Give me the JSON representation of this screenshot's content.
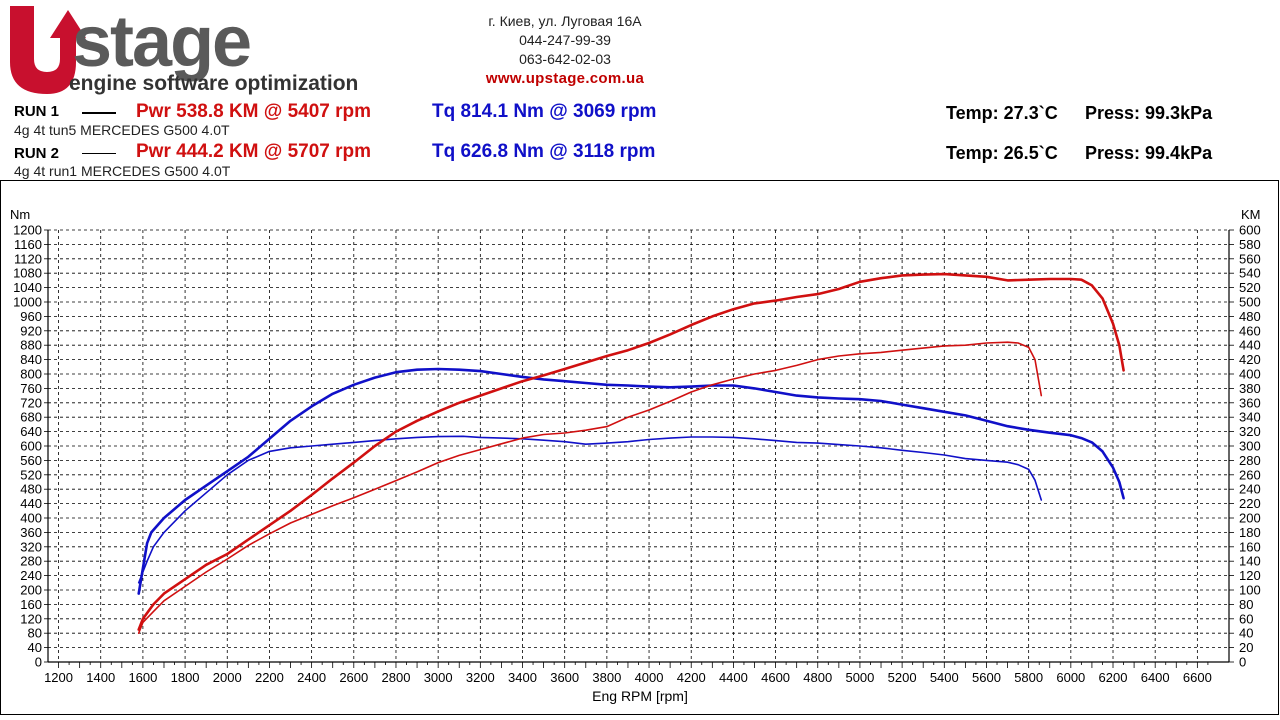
{
  "brand": {
    "logo_text": "stage",
    "logo_tagline": "engine software optimization"
  },
  "contact": {
    "address": "г. Киев, ул. Луговая 16А",
    "phone1": "044-247-99-39",
    "phone2": "063-642-02-03",
    "website": "www.upstage.com.ua"
  },
  "runs": [
    {
      "label": "RUN 1",
      "description": "4g 4t tun5 MERCEDES G500 4.0T",
      "power": "Pwr  538.8 KM @ 5407 rpm",
      "torque": "Tq 814.1 Nm @ 3069 rpm",
      "temp": "Temp: 27.3`C",
      "press": "Press: 99.3kPa"
    },
    {
      "label": "RUN 2",
      "description": "4g 4t run1 MERCEDES G500 4.0T",
      "power": "Pwr  444.2 KM @ 5707 rpm",
      "torque": "Tq 626.8 Nm @ 3118 rpm",
      "temp": "Temp: 26.5`C",
      "press": "Press: 99.4kPa"
    }
  ],
  "colors": {
    "power": "#d01010",
    "torque": "#1010c8",
    "brand_red": "#c8102e",
    "brand_grey": "#5a5a5a"
  },
  "chart_data": {
    "type": "line",
    "xlabel": "Eng RPM [rpm]",
    "ylabel_left": "Nm",
    "ylabel_right": "KM",
    "xlim": [
      1150,
      6750
    ],
    "ylim_left": [
      0,
      1200
    ],
    "ylim_right": [
      0,
      600
    ],
    "x_ticks": [
      1200,
      1400,
      1600,
      1800,
      2000,
      2200,
      2400,
      2600,
      2800,
      3000,
      3200,
      3400,
      3600,
      3800,
      4000,
      4200,
      4400,
      4600,
      4800,
      5000,
      5200,
      5400,
      5600,
      5800,
      6000,
      6200,
      6400,
      6600
    ],
    "y_ticks_left": [
      0,
      40,
      80,
      120,
      160,
      200,
      240,
      280,
      320,
      360,
      400,
      440,
      480,
      520,
      560,
      600,
      640,
      680,
      720,
      760,
      800,
      840,
      880,
      920,
      960,
      1000,
      1040,
      1080,
      1120,
      1160,
      1200
    ],
    "y_ticks_right": [
      0,
      20,
      40,
      60,
      80,
      100,
      120,
      140,
      160,
      180,
      200,
      220,
      240,
      260,
      280,
      300,
      320,
      340,
      360,
      380,
      400,
      420,
      440,
      460,
      480,
      500,
      520,
      540,
      560,
      580,
      600
    ],
    "grid": true,
    "series": [
      {
        "axis": "left",
        "color": "#1010c8",
        "width": 2.6,
        "x": [
          1580,
          1600,
          1620,
          1640,
          1700,
          1800,
          1900,
          2000,
          2100,
          2200,
          2300,
          2400,
          2500,
          2600,
          2700,
          2800,
          2900,
          3000,
          3100,
          3200,
          3300,
          3400,
          3500,
          3600,
          3700,
          3800,
          3900,
          4000,
          4100,
          4200,
          4300,
          4400,
          4500,
          4600,
          4700,
          4800,
          4900,
          5000,
          5100,
          5200,
          5300,
          5400,
          5500,
          5600,
          5700,
          5800,
          5900,
          6000,
          6050,
          6100,
          6150,
          6200,
          6230,
          6250
        ],
        "y": [
          190,
          260,
          330,
          360,
          400,
          450,
          490,
          530,
          570,
          620,
          670,
          710,
          745,
          770,
          790,
          805,
          812,
          814,
          812,
          808,
          800,
          792,
          785,
          780,
          775,
          770,
          768,
          765,
          763,
          765,
          768,
          768,
          760,
          750,
          740,
          735,
          732,
          730,
          725,
          715,
          705,
          695,
          685,
          670,
          655,
          645,
          637,
          630,
          622,
          610,
          585,
          540,
          500,
          455
        ]
      },
      {
        "axis": "left",
        "color": "#1010c8",
        "width": 1.6,
        "x": [
          1580,
          1600,
          1620,
          1650,
          1700,
          1800,
          1900,
          2000,
          2100,
          2200,
          2300,
          2400,
          2500,
          2600,
          2700,
          2800,
          2900,
          3000,
          3118,
          3200,
          3300,
          3400,
          3500,
          3600,
          3700,
          3800,
          3900,
          4000,
          4100,
          4200,
          4300,
          4400,
          4500,
          4600,
          4700,
          4800,
          4900,
          5000,
          5100,
          5200,
          5300,
          5400,
          5500,
          5600,
          5700,
          5750,
          5800,
          5830,
          5860
        ],
        "y": [
          220,
          250,
          280,
          320,
          360,
          420,
          470,
          520,
          560,
          585,
          595,
          600,
          605,
          610,
          615,
          620,
          624,
          626,
          627,
          624,
          622,
          620,
          616,
          612,
          605,
          608,
          612,
          618,
          622,
          625,
          625,
          624,
          620,
          615,
          610,
          608,
          604,
          600,
          595,
          588,
          582,
          575,
          565,
          560,
          555,
          548,
          535,
          505,
          450
        ]
      },
      {
        "axis": "right",
        "color": "#d01010",
        "width": 2.6,
        "x": [
          1580,
          1600,
          1650,
          1700,
          1800,
          1900,
          2000,
          2100,
          2200,
          2300,
          2400,
          2500,
          2600,
          2700,
          2800,
          2900,
          3000,
          3100,
          3200,
          3300,
          3400,
          3500,
          3600,
          3700,
          3800,
          3900,
          4000,
          4100,
          4200,
          4300,
          4400,
          4500,
          4600,
          4700,
          4800,
          4900,
          5000,
          5100,
          5200,
          5300,
          5400,
          5500,
          5600,
          5700,
          5800,
          5900,
          6000,
          6050,
          6100,
          6150,
          6200,
          6230,
          6250
        ],
        "y": [
          45,
          60,
          80,
          95,
          115,
          135,
          150,
          170,
          190,
          210,
          232,
          255,
          277,
          300,
          320,
          335,
          348,
          360,
          370,
          380,
          390,
          398,
          407,
          416,
          425,
          433,
          443,
          455,
          468,
          480,
          490,
          498,
          502,
          507,
          511,
          518,
          528,
          533,
          537,
          538,
          538.8,
          537,
          535,
          530,
          531,
          532,
          532,
          531,
          523,
          505,
          470,
          440,
          405
        ]
      },
      {
        "axis": "right",
        "color": "#d01010",
        "width": 1.6,
        "x": [
          1580,
          1600,
          1650,
          1700,
          1800,
          1900,
          2000,
          2100,
          2200,
          2300,
          2400,
          2500,
          2600,
          2700,
          2800,
          2900,
          3000,
          3100,
          3200,
          3300,
          3400,
          3500,
          3600,
          3700,
          3800,
          3900,
          4000,
          4100,
          4200,
          4300,
          4400,
          4500,
          4600,
          4700,
          4800,
          4900,
          5000,
          5100,
          5200,
          5300,
          5400,
          5500,
          5600,
          5700,
          5750,
          5800,
          5830,
          5860
        ],
        "y": [
          40,
          55,
          70,
          85,
          105,
          125,
          143,
          162,
          178,
          193,
          205,
          217,
          228,
          240,
          252,
          264,
          277,
          287,
          295,
          303,
          311,
          316,
          318,
          322,
          327,
          340,
          350,
          362,
          375,
          385,
          393,
          400,
          405,
          412,
          420,
          425,
          428,
          430,
          433,
          436,
          439,
          440,
          443,
          444.2,
          443,
          437,
          420,
          370
        ]
      }
    ]
  }
}
